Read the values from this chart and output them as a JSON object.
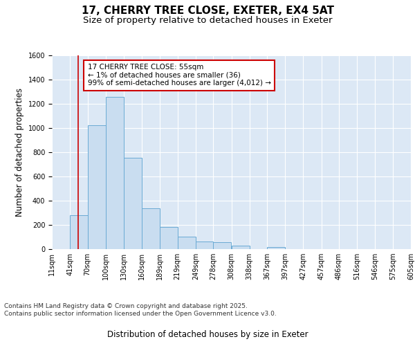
{
  "title": "17, CHERRY TREE CLOSE, EXETER, EX4 5AT",
  "subtitle": "Size of property relative to detached houses in Exeter",
  "xlabel": "Distribution of detached houses by size in Exeter",
  "ylabel": "Number of detached properties",
  "bar_color": "#c9ddf0",
  "bar_edge_color": "#6aaad4",
  "background_color": "#dce8f5",
  "grid_color": "#ffffff",
  "annotation_box_color": "#cc0000",
  "property_line_color": "#cc0000",
  "property_value": 55,
  "annotation_text": "17 CHERRY TREE CLOSE: 55sqm\n← 1% of detached houses are smaller (36)\n99% of semi-detached houses are larger (4,012) →",
  "bins": [
    11,
    41,
    70,
    100,
    130,
    160,
    189,
    219,
    249,
    278,
    308,
    338,
    367,
    397,
    427,
    457,
    486,
    516,
    546,
    575,
    605
  ],
  "counts": [
    0,
    280,
    1020,
    1255,
    755,
    340,
    185,
    105,
    65,
    55,
    30,
    0,
    20,
    0,
    0,
    0,
    0,
    0,
    0,
    0
  ],
  "ylim": [
    0,
    1600
  ],
  "yticks": [
    0,
    200,
    400,
    600,
    800,
    1000,
    1200,
    1400,
    1600
  ],
  "footer_text": "Contains HM Land Registry data © Crown copyright and database right 2025.\nContains public sector information licensed under the Open Government Licence v3.0.",
  "title_fontsize": 11,
  "subtitle_fontsize": 9.5,
  "axis_label_fontsize": 8.5,
  "tick_fontsize": 7,
  "footer_fontsize": 6.5,
  "annotation_fontsize": 7.5
}
